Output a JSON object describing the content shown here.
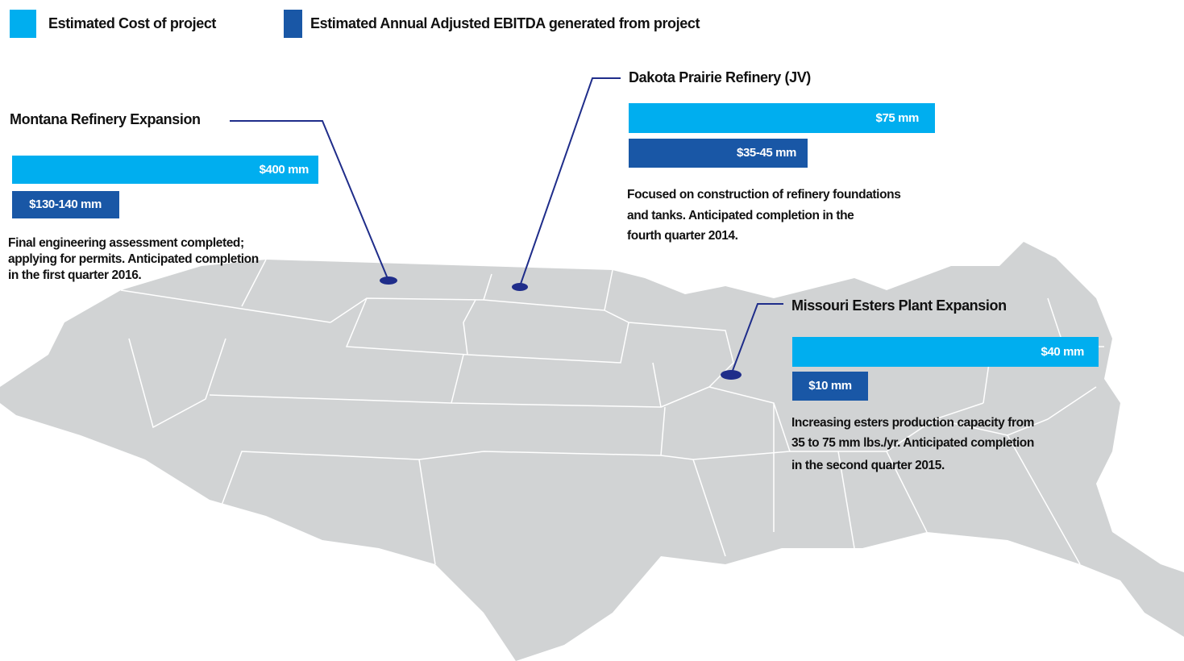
{
  "legend": [
    {
      "label": "Estimated Cost of project"
    },
    {
      "label": "Estimated Annual Adjusted EBITDA generated from project"
    }
  ],
  "projects": [
    {
      "name": "Montana Refinery Expansion",
      "cost": "$400 mm",
      "ebitda": "$130-140 mm",
      "description": [
        "Final engineering assessment completed;",
        "applying for permits. Anticipated completion",
        "in the first quarter 2016."
      ]
    },
    {
      "name": "Dakota Prairie Refinery (JV)",
      "cost": "$75 mm",
      "ebitda": "$35-45 mm",
      "description": [
        "Focused on construction of refinery foundations",
        "and tanks. Anticipated completion in the",
        "fourth quarter 2014."
      ]
    },
    {
      "name": "Missouri Esters Plant Expansion",
      "cost": "$40 mm",
      "ebitda": "$10 mm",
      "description": [
        "Increasing esters production capacity from",
        "35 to 75 mm lbs./yr. Anticipated completion",
        "in the second quarter 2015."
      ]
    }
  ]
}
